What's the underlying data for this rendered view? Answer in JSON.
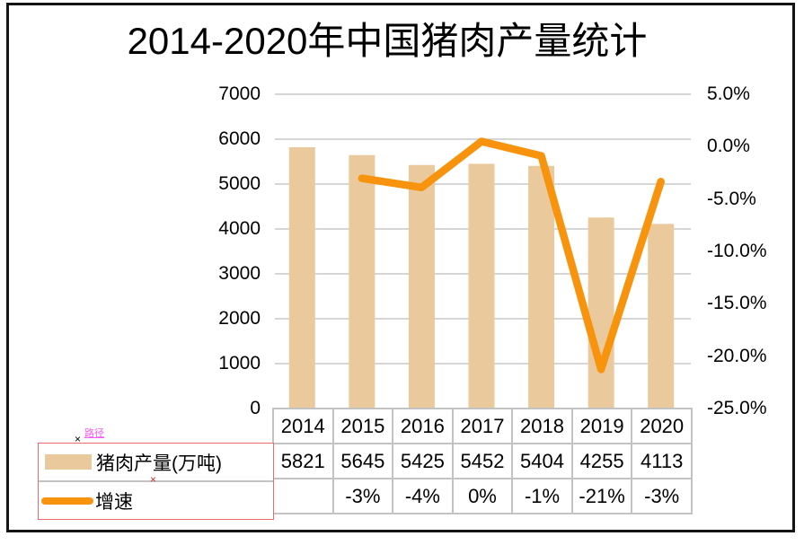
{
  "title": "2014-2020年中国猪肉产量统计",
  "annotation": {
    "path_label": "路径",
    "handle_glyph": "×"
  },
  "colors": {
    "bar": "#EACA9D",
    "line": "#F7930D",
    "grid": "#C8C8C8",
    "border": "#C3C3C3",
    "selection": "#EE6A6A",
    "pink": "#F558F5",
    "frame": "#141414"
  },
  "chart_data": {
    "type": "combo-bar-line",
    "title": "2014-2020年中国猪肉产量统计",
    "categories": [
      "2014",
      "2015",
      "2016",
      "2017",
      "2018",
      "2019",
      "2020"
    ],
    "series": [
      {
        "name": "猪肉产量(万吨)",
        "type": "bar",
        "axis": "left",
        "values": [
          5821,
          5645,
          5425,
          5452,
          5404,
          4255,
          4113
        ]
      },
      {
        "name": "增速",
        "type": "line",
        "axis": "right",
        "values_display": [
          "",
          "-3%",
          "-4%",
          "0%",
          "-1%",
          "-21%",
          "-3%"
        ],
        "values_pct": [
          null,
          -3.02,
          -3.9,
          0.5,
          -0.88,
          -21.26,
          -3.34
        ]
      }
    ],
    "left_axis": {
      "min": 0,
      "max": 7000,
      "step": 1000,
      "labels": [
        "7000",
        "6000",
        "5000",
        "4000",
        "3000",
        "2000",
        "1000",
        "0"
      ]
    },
    "right_axis": {
      "min": -25,
      "max": 5,
      "step": 5,
      "labels": [
        "5.0%",
        "0.0%",
        "-5.0%",
        "-10.0%",
        "-15.0%",
        "-20.0%",
        "-25.0%"
      ]
    },
    "grid": true,
    "legend_position": "bottom-left-table"
  },
  "table": {
    "header_row": [
      "2014",
      "2015",
      "2016",
      "2017",
      "2018",
      "2019",
      "2020"
    ],
    "rows": [
      {
        "label": "猪肉产量(万吨)",
        "cells": [
          "5821",
          "5645",
          "5425",
          "5452",
          "5404",
          "4255",
          "4113"
        ]
      },
      {
        "label": "增速",
        "cells": [
          "",
          "-3%",
          "-4%",
          "0%",
          "-1%",
          "-21%",
          "-3%"
        ]
      }
    ]
  }
}
